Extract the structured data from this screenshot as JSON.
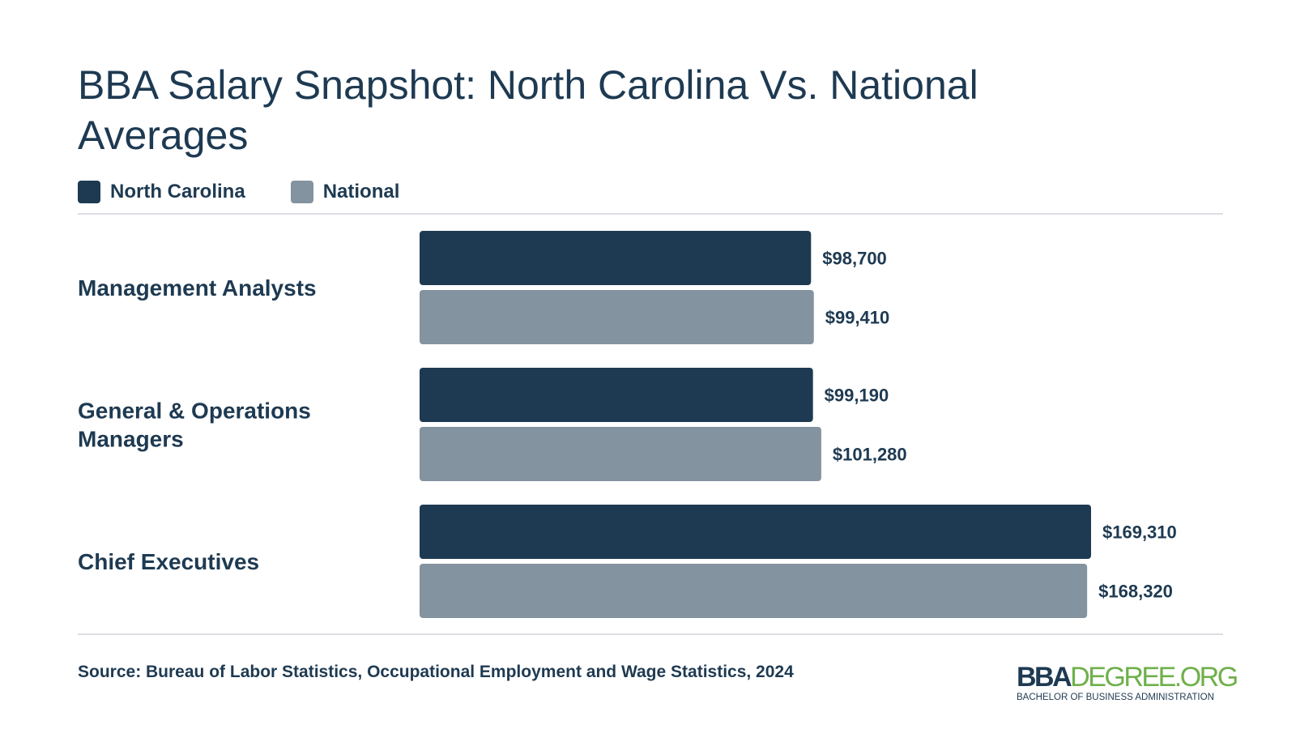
{
  "chart_data": {
    "type": "bar",
    "orientation": "horizontal",
    "title": "BBA Salary Snapshot: North Carolina Vs. National Averages",
    "categories": [
      "Management Analysts",
      "General & Operations Managers",
      "Chief Executives"
    ],
    "series": [
      {
        "name": "North Carolina",
        "color": "#1e3a52",
        "values": [
          98700,
          99190,
          169310
        ],
        "labels": [
          "$98,700",
          "$99,190",
          "$169,310"
        ]
      },
      {
        "name": "National",
        "color": "#8393a0",
        "values": [
          99410,
          101280,
          168320
        ],
        "labels": [
          "$99,410",
          "$101,280",
          "$168,320"
        ]
      }
    ],
    "xlim": [
      0,
      169310
    ],
    "grid": false,
    "legend_position": "top-left"
  },
  "source": "Source: Bureau of Labor Statistics, Occupational Employment and Wage Statistics, 2024",
  "logo": {
    "primary": "BBA",
    "secondary": "DEGREE.ORG",
    "tagline": "BACHELOR OF BUSINESS ADMINISTRATION"
  }
}
